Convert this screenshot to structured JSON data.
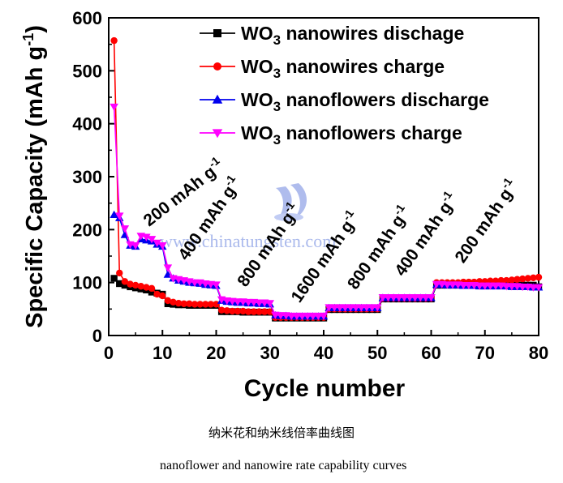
{
  "caption_cn": "纳米花和纳米线倍率曲线图",
  "caption_en": "nanoflower and nanowire rate capability curves",
  "watermark": "www.chinatungsten.com",
  "chart_data": {
    "type": "scatter",
    "title": "",
    "xlabel": "Cycle number",
    "ylabel": "Specific Capacity (mAh g",
    "ylabel_sup": "-1",
    "ylabel_close": ")",
    "xlim": [
      0,
      80
    ],
    "ylim": [
      0,
      600
    ],
    "xticks": [
      "0",
      "10",
      "20",
      "30",
      "40",
      "50",
      "60",
      "70",
      "80"
    ],
    "yticks": [
      "0",
      "100",
      "200",
      "300",
      "400",
      "500",
      "600"
    ],
    "legend_position": "top-right",
    "series": [
      {
        "name": "WO3 nanowires dischage",
        "name_pre": "WO",
        "name_sub": "3",
        "name_post": " nanowires dischage",
        "color": "#000000",
        "marker": "square",
        "x": [
          1,
          2,
          3,
          4,
          5,
          6,
          7,
          8,
          9,
          10,
          11,
          12,
          13,
          14,
          15,
          16,
          17,
          18,
          19,
          20,
          21,
          22,
          23,
          24,
          25,
          26,
          27,
          28,
          29,
          30,
          31,
          32,
          33,
          34,
          35,
          36,
          37,
          38,
          39,
          40,
          41,
          42,
          43,
          44,
          45,
          46,
          47,
          48,
          49,
          50,
          51,
          52,
          53,
          54,
          55,
          56,
          57,
          58,
          59,
          60,
          61,
          62,
          63,
          64,
          65,
          66,
          67,
          68,
          69,
          70,
          71,
          72,
          73,
          74,
          75,
          76,
          77,
          78,
          79,
          80
        ],
        "y": [
          108,
          98,
          95,
          92,
          90,
          88,
          86,
          82,
          80,
          78,
          60,
          59,
          58,
          58,
          57,
          57,
          57,
          57,
          57,
          57,
          45,
          45,
          45,
          45,
          44,
          44,
          44,
          44,
          44,
          44,
          33,
          33,
          33,
          33,
          33,
          33,
          33,
          33,
          33,
          33,
          49,
          49,
          49,
          49,
          49,
          49,
          49,
          49,
          49,
          49,
          69,
          69,
          69,
          69,
          69,
          69,
          69,
          69,
          69,
          69,
          95,
          95,
          95,
          95,
          95,
          95,
          95,
          95,
          95,
          95,
          95,
          95,
          95,
          95,
          95,
          95,
          95,
          95,
          95,
          92
        ]
      },
      {
        "name": "WO3 nanowires charge",
        "name_pre": "WO",
        "name_sub": "3",
        "name_post": " nanowires charge",
        "color": "#ff0000",
        "marker": "circle",
        "x": [
          1,
          2,
          3,
          4,
          5,
          6,
          7,
          8,
          9,
          10,
          11,
          12,
          13,
          14,
          15,
          16,
          17,
          18,
          19,
          20,
          21,
          22,
          23,
          24,
          25,
          26,
          27,
          28,
          29,
          30,
          31,
          32,
          33,
          34,
          35,
          36,
          37,
          38,
          39,
          40,
          41,
          42,
          43,
          44,
          45,
          46,
          47,
          48,
          49,
          50,
          51,
          52,
          53,
          54,
          55,
          56,
          57,
          58,
          59,
          60,
          61,
          62,
          63,
          64,
          65,
          66,
          67,
          68,
          69,
          70,
          71,
          72,
          73,
          74,
          75,
          76,
          77,
          78,
          79,
          80
        ],
        "y": [
          557,
          118,
          102,
          97,
          95,
          93,
          91,
          89,
          78,
          75,
          66,
          63,
          61,
          60,
          60,
          59,
          59,
          59,
          59,
          59,
          48,
          47,
          46,
          46,
          46,
          45,
          45,
          45,
          45,
          45,
          34,
          34,
          34,
          34,
          34,
          34,
          34,
          34,
          34,
          34,
          50,
          50,
          50,
          50,
          50,
          50,
          50,
          50,
          50,
          50,
          70,
          70,
          70,
          70,
          70,
          70,
          70,
          70,
          70,
          70,
          100,
          100,
          100,
          100,
          100,
          101,
          101,
          101,
          102,
          102,
          103,
          103,
          104,
          104,
          105,
          106,
          107,
          108,
          109,
          110
        ]
      },
      {
        "name": "WO3 nanoflowers discharge",
        "name_pre": "WO",
        "name_sub": "3",
        "name_post": " nanoflowers discharge",
        "color": "#0000ee",
        "marker": "triangle-up",
        "x": [
          1,
          2,
          3,
          4,
          5,
          6,
          7,
          8,
          9,
          10,
          11,
          12,
          13,
          14,
          15,
          16,
          17,
          18,
          19,
          20,
          21,
          22,
          23,
          24,
          25,
          26,
          27,
          28,
          29,
          30,
          31,
          32,
          33,
          34,
          35,
          36,
          37,
          38,
          39,
          40,
          41,
          42,
          43,
          44,
          45,
          46,
          47,
          48,
          49,
          50,
          51,
          52,
          53,
          54,
          55,
          56,
          57,
          58,
          59,
          60,
          61,
          62,
          63,
          64,
          65,
          66,
          67,
          68,
          69,
          70,
          71,
          72,
          73,
          74,
          75,
          76,
          77,
          78,
          79,
          80
        ],
        "y": [
          228,
          222,
          190,
          170,
          168,
          182,
          180,
          178,
          172,
          168,
          115,
          108,
          104,
          102,
          100,
          99,
          98,
          96,
          95,
          94,
          66,
          64,
          63,
          62,
          62,
          61,
          61,
          60,
          60,
          59,
          38,
          37,
          37,
          36,
          36,
          36,
          36,
          36,
          36,
          36,
          52,
          52,
          52,
          52,
          52,
          52,
          52,
          52,
          52,
          52,
          71,
          71,
          71,
          71,
          71,
          71,
          71,
          71,
          71,
          71,
          96,
          96,
          95,
          95,
          95,
          94,
          94,
          94,
          93,
          93,
          93,
          93,
          93,
          93,
          92,
          92,
          92,
          92,
          91,
          91
        ]
      },
      {
        "name": "WO3 nanoflowers charge",
        "name_pre": "WO",
        "name_sub": "3",
        "name_post": " nanoflowers charge",
        "color": "#ff00ff",
        "marker": "triangle-down",
        "x": [
          1,
          2,
          3,
          4,
          5,
          6,
          7,
          8,
          9,
          10,
          11,
          12,
          13,
          14,
          15,
          16,
          17,
          18,
          19,
          20,
          21,
          22,
          23,
          24,
          25,
          26,
          27,
          28,
          29,
          30,
          31,
          32,
          33,
          34,
          35,
          36,
          37,
          38,
          39,
          40,
          41,
          42,
          43,
          44,
          45,
          46,
          47,
          48,
          49,
          50,
          51,
          52,
          53,
          54,
          55,
          56,
          57,
          58,
          59,
          60,
          61,
          62,
          63,
          64,
          65,
          66,
          67,
          68,
          69,
          70,
          71,
          72,
          73,
          74,
          75,
          76,
          77,
          78,
          79,
          80
        ],
        "y": [
          432,
          226,
          202,
          172,
          170,
          188,
          186,
          182,
          175,
          170,
          128,
          108,
          106,
          104,
          102,
          100,
          100,
          98,
          97,
          96,
          68,
          66,
          65,
          64,
          64,
          63,
          63,
          62,
          62,
          61,
          39,
          38,
          38,
          37,
          37,
          37,
          37,
          37,
          37,
          37,
          53,
          53,
          53,
          53,
          53,
          53,
          53,
          53,
          53,
          53,
          72,
          72,
          72,
          72,
          72,
          72,
          72,
          72,
          72,
          72,
          97,
          97,
          96,
          96,
          96,
          95,
          95,
          95,
          94,
          94,
          94,
          94,
          94,
          93,
          93,
          93,
          92,
          92,
          91,
          91
        ]
      }
    ],
    "annotations": [
      {
        "text": "200 mAh g",
        "sup": "-1",
        "x": 7.5,
        "y": 205,
        "angle": -38
      },
      {
        "text": "400 mAh g",
        "sup": "-1",
        "x": 14.5,
        "y": 140,
        "angle": -55
      },
      {
        "text": "800 mAh g",
        "sup": "-1",
        "x": 25.5,
        "y": 90,
        "angle": -55
      },
      {
        "text": "1600 mAh g",
        "sup": "-1",
        "x": 35.5,
        "y": 60,
        "angle": -55
      },
      {
        "text": "800 mAh g",
        "sup": "-1",
        "x": 46,
        "y": 85,
        "angle": -55
      },
      {
        "text": "400 mAh g",
        "sup": "-1",
        "x": 54.8,
        "y": 110,
        "angle": -55
      },
      {
        "text": "200 mAh g",
        "sup": "-1",
        "x": 66,
        "y": 135,
        "angle": -55
      }
    ]
  }
}
